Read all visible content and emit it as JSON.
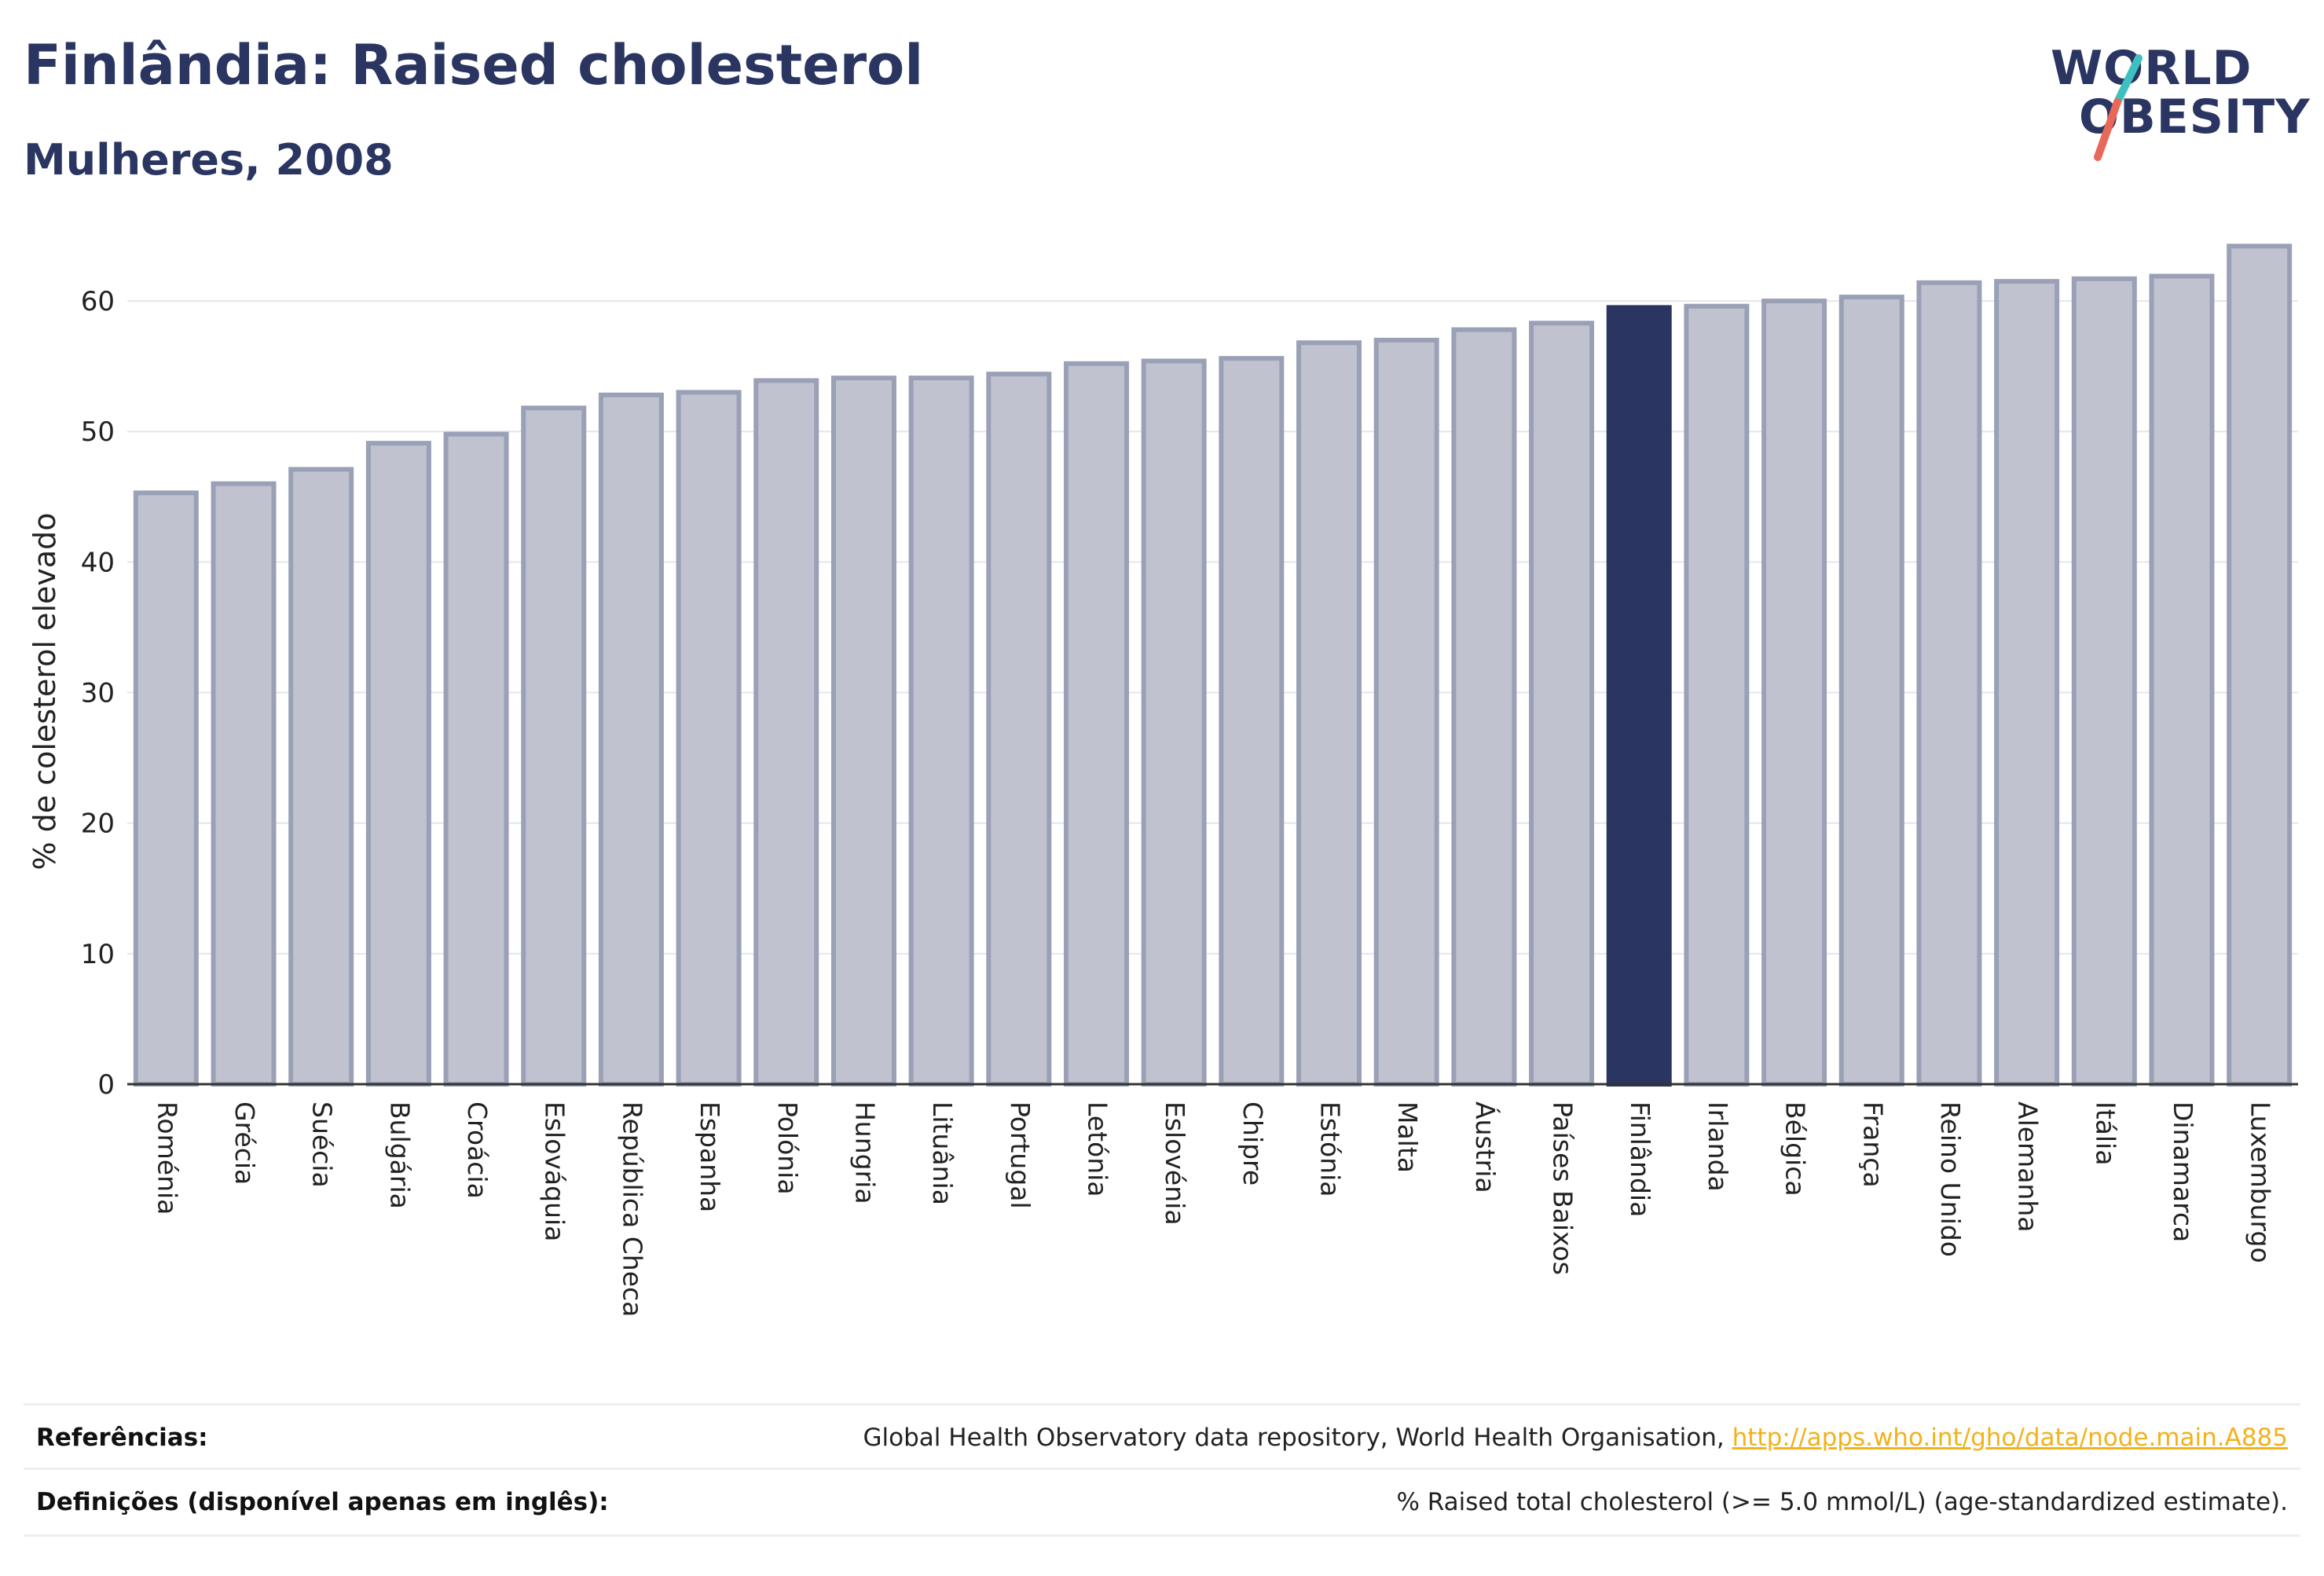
{
  "header": {
    "title": "Finlândia: Raised cholesterol",
    "subtitle": "Mulheres, 2008"
  },
  "logo": {
    "line1": "WORLD",
    "line2": "OBESITY",
    "accent_teal": "#3ec0c0",
    "accent_red": "#e8685a"
  },
  "chart_data": {
    "type": "bar",
    "ylabel": "% de colesterol elevado",
    "ylim": [
      0,
      65
    ],
    "yticks": [
      0,
      10,
      20,
      30,
      40,
      50,
      60
    ],
    "grid": true,
    "categories": [
      "Roménia",
      "Grécia",
      "Suécia",
      "Bulgária",
      "Croácia",
      "Eslováquia",
      "República Checa",
      "Espanha",
      "Polónia",
      "Hungria",
      "Lituânia",
      "Portugal",
      "Letónia",
      "Eslovénia",
      "Chipre",
      "Estónia",
      "Malta",
      "Áustria",
      "Países Baixos",
      "Finlândia",
      "Irlanda",
      "Bélgica",
      "França",
      "Reino Unido",
      "Alemanha",
      "Itália",
      "Dinamarca",
      "Luxemburgo"
    ],
    "values": [
      45.3,
      46.0,
      47.1,
      49.1,
      49.8,
      51.8,
      52.8,
      53.0,
      53.9,
      54.1,
      54.1,
      54.4,
      55.2,
      55.4,
      55.6,
      56.8,
      57.0,
      57.8,
      58.3,
      59.5,
      59.6,
      60.0,
      60.3,
      61.4,
      61.5,
      61.7,
      61.9,
      64.2
    ],
    "highlight": "Finlândia",
    "colors": {
      "bar": "#c0c3cf",
      "bar_border": "#9aa0b6",
      "highlight": "#2a3561",
      "grid": "#e4e6ee",
      "axis": "#333333"
    }
  },
  "footer": {
    "references_label": "Referências:",
    "references_text": "Global Health Observatory data repository, World Health Organisation, ",
    "references_link": "http://apps.who.int/gho/data/node.main.A885",
    "definitions_label": "Definições (disponível apenas em inglês):",
    "definitions_text": "% Raised total cholesterol (>= 5.0 mmol/L) (age-standardized estimate)."
  }
}
